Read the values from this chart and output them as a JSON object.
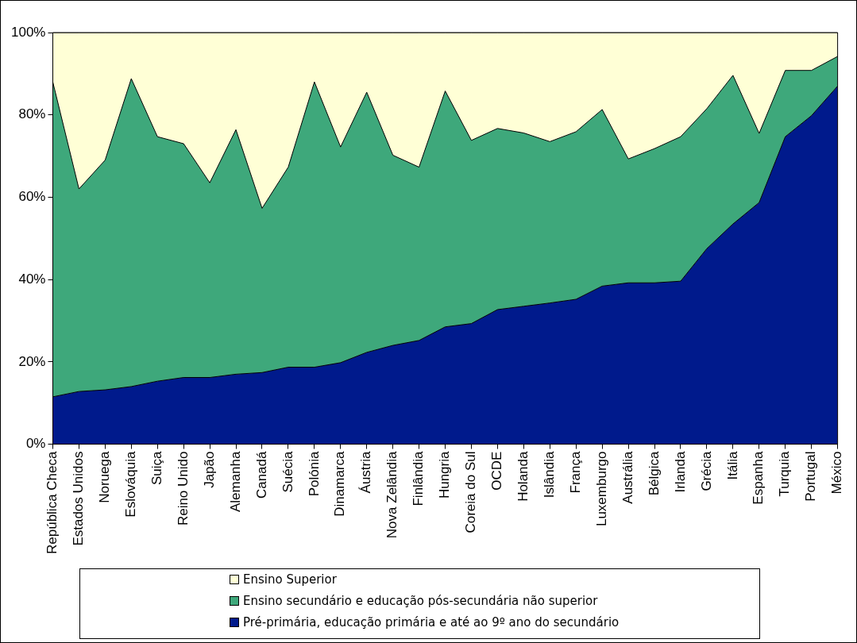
{
  "chart_data": {
    "type": "area",
    "stacked": true,
    "categories": [
      "República Checa",
      "Estados Unidos",
      "Noruega",
      "Eslováquia",
      "Suiça",
      "Reino Unido",
      "Japão",
      "Alemanha",
      "Canadá",
      "Suécia",
      "Polónia",
      "Dinamarca",
      "Áustria",
      "Nova Zelândia",
      "Finlândia",
      "Hungria",
      "Coreia do Sul",
      "OCDE",
      "Holanda",
      "Islândia",
      "França",
      "Luxemburgo",
      "Austrália",
      "Bélgica",
      "Irlanda",
      "Grécia",
      "Itália",
      "Espanha",
      "Turquia",
      "Portugal",
      "México"
    ],
    "series": [
      {
        "name": "Pré-primária, educação primária e até ao 9º ano do secundário",
        "color": "#001a8c",
        "values": [
          11.5,
          12.8,
          13.2,
          14,
          15.3,
          16.2,
          16.2,
          17,
          17.4,
          18.7,
          18.7,
          19.8,
          22.3,
          24,
          25.2,
          28.5,
          29.3,
          32.7,
          33.5,
          34.3,
          35.2,
          38.4,
          39.2,
          39.2,
          39.6,
          47.5,
          53.5,
          58.7,
          74.7,
          79.8,
          87
        ]
      },
      {
        "name": "Ensino secundário e educação pós-secundária não superior",
        "color": "#3ea87b",
        "values": [
          76.5,
          49.2,
          55.8,
          74.8,
          59.4,
          56.8,
          47.3,
          59.4,
          39.9,
          48.6,
          69.3,
          52.4,
          63.2,
          46.2,
          42.1,
          57.3,
          44.5,
          44,
          42.1,
          39.2,
          40.7,
          42.9,
          30.1,
          32.6,
          35.1,
          34,
          36.1,
          16.8,
          16.1,
          11,
          7.2
        ]
      },
      {
        "name": "Ensino  Superior",
        "color": "#ffffd6",
        "values": [
          12,
          38,
          31,
          11.2,
          25.3,
          27,
          36.5,
          23.6,
          42.7,
          32.7,
          12,
          27.8,
          14.5,
          29.8,
          32.7,
          14.2,
          26.2,
          23.3,
          24.4,
          26.5,
          24.1,
          18.7,
          30.7,
          28.2,
          25.3,
          18.5,
          10.4,
          24.5,
          9.2,
          9.2,
          5.8
        ]
      }
    ],
    "ylim": [
      0,
      100
    ],
    "yticks": [
      {
        "value": 0,
        "label": "0%"
      },
      {
        "value": 20,
        "label": "20%"
      },
      {
        "value": 40,
        "label": "40%"
      },
      {
        "value": 60,
        "label": "60%"
      },
      {
        "value": 80,
        "label": "80%"
      },
      {
        "value": 100,
        "label": "100%"
      }
    ],
    "legend": "bottom"
  }
}
